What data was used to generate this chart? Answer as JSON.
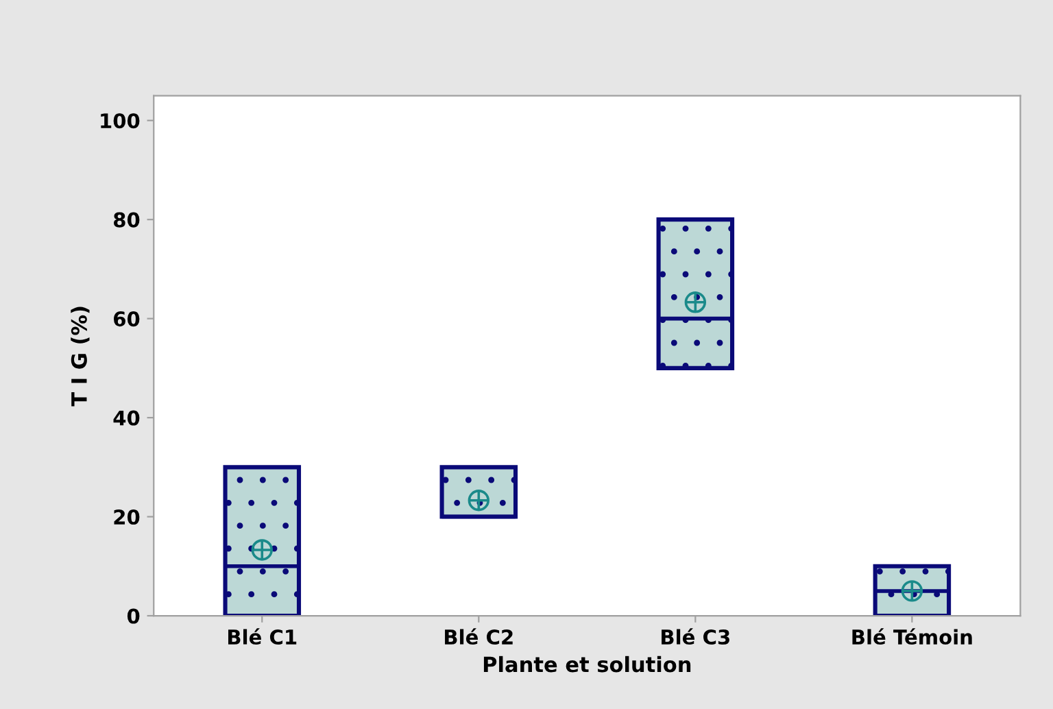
{
  "chart_data": {
    "type": "box",
    "xlabel": "Plante et solution",
    "ylabel": "T I G (%)",
    "categories": [
      "Blé C1",
      "Blé C2",
      "Blé C3",
      "Blé Témoin"
    ],
    "boxes": [
      {
        "low": 0,
        "q1": 0,
        "median": 10,
        "q3": 30,
        "high": 30,
        "mean": 13.3
      },
      {
        "low": 20,
        "q1": 20,
        "median": 20,
        "q3": 30,
        "high": 30,
        "mean": 23.3
      },
      {
        "low": 50,
        "q1": 50,
        "median": 60,
        "q3": 80,
        "high": 80,
        "mean": 63.3
      },
      {
        "low": 0,
        "q1": 0,
        "median": 5,
        "q3": 10,
        "high": 10,
        "mean": 5
      }
    ],
    "color": "#bcd8d6",
    "ylim": [
      0,
      105
    ],
    "yticks": [
      0,
      20,
      40,
      60,
      80,
      100
    ],
    "grid": false,
    "legend": false
  }
}
